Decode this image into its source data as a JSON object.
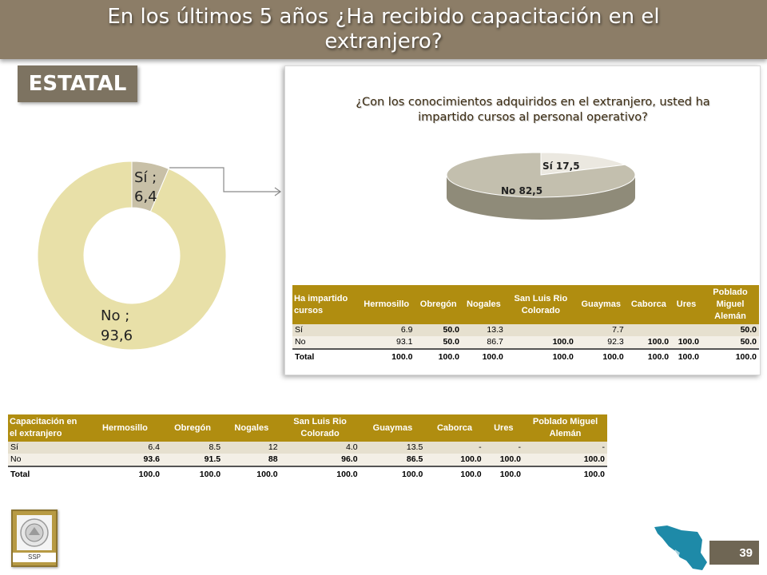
{
  "header": {
    "title": "En los últimos 5 años ¿Ha recibido capacitación en el extranjero?"
  },
  "badge": {
    "label": "ESTATAL"
  },
  "donut_chart": {
    "si_label": "Sí ;",
    "si_value": "6,4",
    "no_label": "No ;",
    "no_value": "93,6"
  },
  "panel": {
    "question": "¿Con los conocimientos adquiridos en el extranjero, usted ha impartido cursos al personal operativo?",
    "pie_si_label": "Sí  17,5",
    "pie_no_label": "No  82,5"
  },
  "table1": {
    "headers": [
      "Ha impartido cursos",
      "Hermosillo",
      "Obregón",
      "Nogales",
      "San Luis Rio Colorado",
      "Guaymas",
      "Caborca",
      "Ures",
      "Poblado Miguel Alemán"
    ],
    "rows": [
      [
        "Sí",
        "6.9",
        "50.0",
        "13.3",
        "",
        "7.7",
        "",
        "",
        "50.0"
      ],
      [
        "No",
        "93.1",
        "50.0",
        "86.7",
        "100.0",
        "92.3",
        "100.0",
        "100.0",
        "50.0"
      ],
      [
        "Total",
        "100.0",
        "100.0",
        "100.0",
        "100.0",
        "100.0",
        "100.0",
        "100.0",
        "100.0"
      ]
    ]
  },
  "table2": {
    "headers": [
      "Capacitación en el extranjero",
      "Hermosillo",
      "Obregón",
      "Nogales",
      "San Luis Rio Colorado",
      "Guaymas",
      "Caborca",
      "Ures",
      "Poblado Miguel Alemán"
    ],
    "rows": [
      [
        "Sí",
        "6.4",
        "8.5",
        "12",
        "4.0",
        "13.5",
        "-",
        "-",
        "-"
      ],
      [
        "No",
        "93.6",
        "91.5",
        "88",
        "96.0",
        "86.5",
        "100.0",
        "100.0",
        "100.0"
      ],
      [
        "Total",
        "100.0",
        "100.0",
        "100.0",
        "100.0",
        "100.0",
        "100.0",
        "100.0",
        "100.0"
      ]
    ]
  },
  "footer": {
    "logo_text": "SSP",
    "page_number": "39"
  },
  "chart_data": [
    {
      "type": "pie",
      "categories": [
        "Sí",
        "No"
      ],
      "values": [
        6.4,
        93.6
      ],
      "colors": [
        "#c8c0a7",
        "#e8e0a8"
      ]
    },
    {
      "type": "pie",
      "categories": [
        "Sí",
        "No"
      ],
      "values": [
        17.5,
        82.5
      ],
      "colors": [
        "#e9e6dc",
        "#b9b5a4"
      ]
    }
  ],
  "colors": {
    "title_bar": "#8c7d67",
    "table_header": "#b08d10",
    "accent_map": "#1e8aa8"
  }
}
